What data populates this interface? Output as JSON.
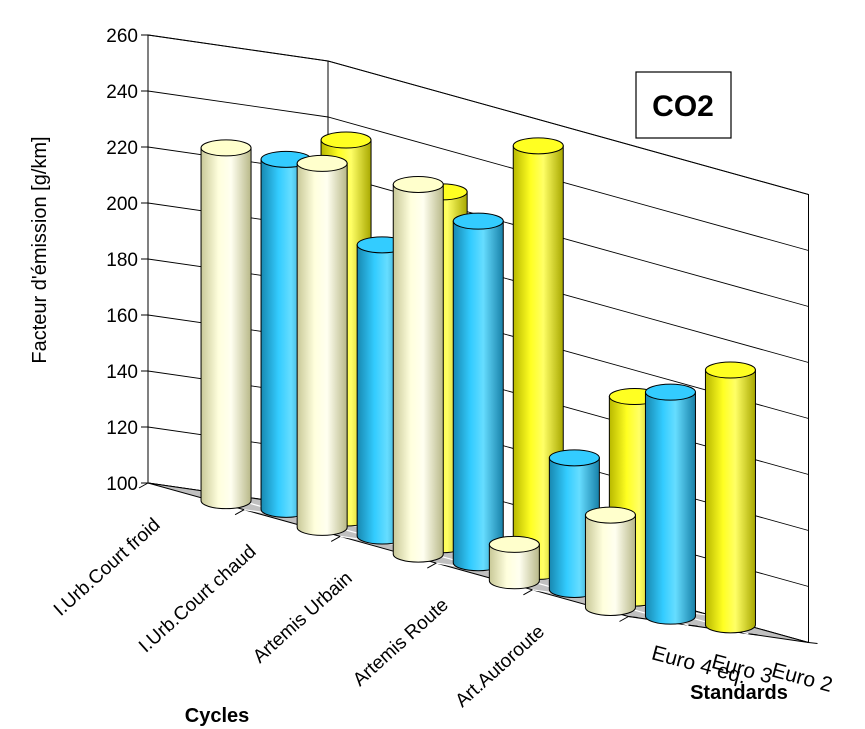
{
  "chart_data": {
    "type": "bar",
    "title": "CO2",
    "ylabel": "Facteur d'émission [g/km]",
    "xlabel": "Cycles",
    "zlabel": "Standards",
    "ylim": [
      100,
      260
    ],
    "yticks": [
      "100",
      "120",
      "140",
      "160",
      "180",
      "200",
      "220",
      "240",
      "260"
    ],
    "categories": [
      "I.Urb.Court froid",
      "I.Urb.Court chaud",
      "Artemis Urbain",
      "Artemis Route",
      "Art.Autoroute"
    ],
    "series": [
      {
        "name": "Euro 2",
        "color": "#FFFF22",
        "values": [
          235,
          226,
          252,
          172,
          191
        ]
      },
      {
        "name": "Euro 3",
        "color": "#33CCFF",
        "values": [
          225,
          204,
          222,
          147,
          180
        ]
      },
      {
        "name": "Euro 4 eq.",
        "color": "#FFFFCC",
        "values": [
          226,
          230,
          232,
          113,
          133
        ]
      }
    ],
    "grid": true
  }
}
